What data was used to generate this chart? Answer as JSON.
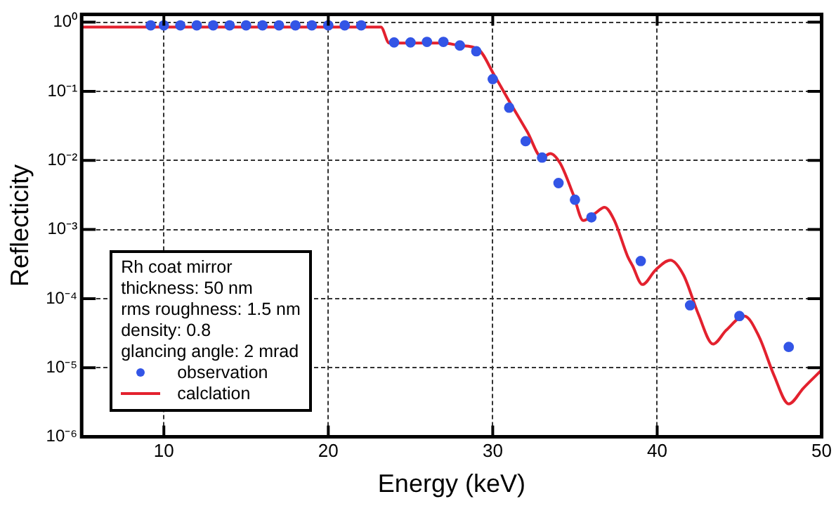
{
  "chart_data": {
    "type": "scatter",
    "xlabel": "Energy (keV)",
    "ylabel": "Reflecticity",
    "legend_title": "Rh coat mirror\nthickness: 50 nm\nrms roughness: 1.5 nm\ndensity: 0.8\nglancing angle: 2 mrad",
    "legend": "bottom left",
    "grid": true,
    "log": "y",
    "xlim": [
      5,
      50
    ],
    "xticks": [
      10,
      20,
      30,
      40,
      50
    ],
    "ylim": [
      1e-06,
      1.3
    ],
    "yticks": [
      {
        "value": 1,
        "label": "10⁰"
      },
      {
        "value": 0.1,
        "label": "10⁻¹"
      },
      {
        "value": 0.01,
        "label": "10⁻²"
      },
      {
        "value": 0.001,
        "label": "10⁻³"
      },
      {
        "value": 0.0001,
        "label": "10⁻⁴"
      },
      {
        "value": 1e-05,
        "label": "10⁻⁵"
      },
      {
        "value": 1e-06,
        "label": "10⁻⁶"
      }
    ],
    "series": [
      {
        "name": "observation",
        "marker": "circle",
        "color": "#3355e6",
        "x": [
          9.2,
          10,
          11,
          12,
          13,
          14,
          15,
          16,
          17,
          18,
          19,
          20,
          21,
          22,
          24,
          25,
          26,
          27,
          28,
          29,
          30,
          31,
          32,
          33,
          34,
          35,
          36,
          39,
          42,
          45,
          48
        ],
        "values": [
          0.9,
          0.9,
          0.9,
          0.9,
          0.9,
          0.9,
          0.9,
          0.9,
          0.9,
          0.9,
          0.9,
          0.9,
          0.9,
          0.9,
          0.51,
          0.51,
          0.52,
          0.52,
          0.46,
          0.38,
          0.15,
          0.058,
          0.019,
          0.011,
          0.0047,
          0.0027,
          0.0015,
          0.00035,
          8e-05,
          5.6e-05,
          2e-05
        ]
      },
      {
        "name": "calclation",
        "type": "line",
        "marker": "none",
        "color": "#e3212e",
        "x": [
          5,
          23.2,
          23.7,
          27,
          28,
          29.1,
          30.1,
          31,
          32.1,
          33,
          33.5,
          34.1,
          34.9,
          35.5,
          36.2,
          36.8,
          37.4,
          38.2,
          38.5,
          39.1,
          39.9,
          40.8,
          41.6,
          42.5,
          43.4,
          44.2,
          45.3,
          46.2,
          47.1,
          48,
          48.9,
          50
        ],
        "values": [
          0.85,
          0.85,
          0.5,
          0.5,
          0.46,
          0.41,
          0.17,
          0.072,
          0.026,
          0.011,
          0.0126,
          0.0091,
          0.0032,
          0.00135,
          0.0017,
          0.0021,
          0.00135,
          0.00041,
          0.0003,
          0.00016,
          0.00026,
          0.00036,
          0.00022,
          6e-05,
          2.2e-05,
          3.5e-05,
          5.6e-05,
          2.8e-05,
          7.8e-06,
          3e-06,
          5.1e-06,
          9.3e-06
        ]
      }
    ]
  }
}
